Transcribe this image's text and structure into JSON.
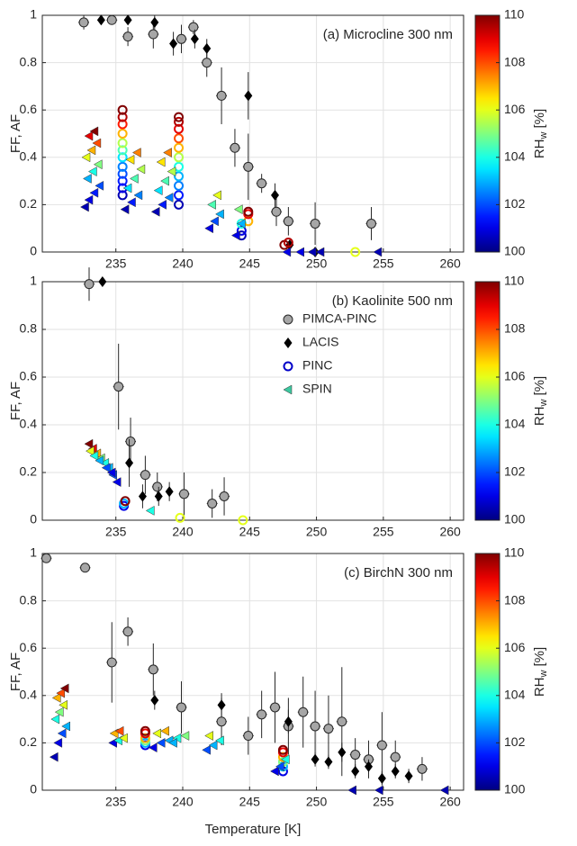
{
  "chart_data": [
    {
      "type": "scatter",
      "annotation": "(a) Microcline 300 nm",
      "ylabel": "FF, AF",
      "xlim": [
        229.5,
        261
      ],
      "xticks": [
        235,
        240,
        245,
        250,
        255,
        260
      ],
      "ylim": [
        0,
        1
      ],
      "yticks": [
        0,
        0.2,
        0.4,
        0.6,
        0.8,
        1
      ],
      "grid": true,
      "colorbar": {
        "colormap": "jet",
        "label": "RH",
        "label_sub": "w",
        "label_unit": "[%]",
        "lim": [
          100,
          110
        ],
        "ticks": [
          100,
          102,
          104,
          106,
          108,
          110
        ]
      },
      "series": [
        {
          "marker": "circle",
          "color": "#a6a6a6",
          "xerr": 0.4,
          "x": [
            232.6,
            234.7,
            235.9,
            237.8,
            239.9,
            240.8,
            241.8,
            242.9,
            243.9,
            244.9,
            245.9,
            247,
            247.9,
            249.9,
            254.1
          ],
          "y": [
            0.97,
            0.98,
            0.91,
            0.92,
            0.9,
            0.95,
            0.8,
            0.66,
            0.44,
            0.36,
            0.29,
            0.17,
            0.13,
            0.12,
            0.12
          ],
          "yerr": [
            0.03,
            0.02,
            0.04,
            0.06,
            0.06,
            0.03,
            0.06,
            0.12,
            0.08,
            0.14,
            0.04,
            0.06,
            0.06,
            0.09,
            0.07
          ]
        },
        {
          "marker": "diamond",
          "color": "#000000",
          "x": [
            233.9,
            235.9,
            237.9,
            239.3,
            240.9,
            241.8,
            244.9,
            246.9,
            248,
            249.9
          ],
          "y": [
            0.98,
            0.98,
            0.97,
            0.88,
            0.9,
            0.86,
            0.66,
            0.24,
            0.03,
            0
          ],
          "yerr": [
            0.02,
            0.02,
            0.03,
            0.05,
            0.04,
            0.04,
            0.1,
            0.05,
            0.02,
            0.01
          ]
        },
        {
          "marker": "ring",
          "x": [
            235.5,
            235.5,
            235.5,
            235.5,
            235.5,
            235.5,
            235.5,
            235.5,
            235.5,
            235.5,
            235.5,
            235.5,
            239.7,
            239.7,
            239.7,
            239.7,
            239.7,
            239.7,
            239.7,
            239.7,
            239.7,
            239.7,
            239.7,
            244.4,
            244.4,
            244.4,
            244.9,
            244.9,
            244.9,
            247.6,
            247.9,
            252.9
          ],
          "y": [
            0.24,
            0.27,
            0.3,
            0.33,
            0.36,
            0.4,
            0.43,
            0.46,
            0.5,
            0.54,
            0.57,
            0.6,
            0.2,
            0.24,
            0.28,
            0.32,
            0.36,
            0.4,
            0.44,
            0.48,
            0.52,
            0.55,
            0.57,
            0.07,
            0.09,
            0.12,
            0.13,
            0.16,
            0.17,
            0.03,
            0.04,
            0
          ],
          "rh": [
            100.5,
            101,
            101.5,
            102,
            102.5,
            103.5,
            104.5,
            105.5,
            107,
            108.5,
            109.5,
            110,
            100.5,
            101.5,
            102.5,
            103,
            104,
            105.5,
            107,
            108,
            109,
            109.5,
            110,
            100.5,
            101,
            104,
            107,
            109,
            110,
            110,
            109.5,
            106
          ]
        },
        {
          "marker": "triangle-left",
          "x": [
            232.7,
            233.0,
            233.4,
            233.8,
            232.9,
            233.3,
            233.7,
            232.8,
            233.2,
            233.6,
            233.0,
            233.4,
            235.7,
            236.2,
            236.7,
            235.9,
            236.4,
            236.9,
            236.1,
            236.6,
            238.0,
            238.5,
            239.0,
            238.2,
            238.7,
            239.2,
            238.4,
            238.9,
            242.0,
            242.4,
            242.8,
            242.2,
            242.6,
            244.0,
            244.4,
            244.2,
            247.8,
            248.8,
            249.7,
            250.3,
            254.6
          ],
          "y": [
            0.19,
            0.22,
            0.25,
            0.28,
            0.31,
            0.34,
            0.37,
            0.4,
            0.43,
            0.46,
            0.49,
            0.51,
            0.18,
            0.21,
            0.24,
            0.27,
            0.31,
            0.35,
            0.39,
            0.42,
            0.17,
            0.2,
            0.23,
            0.26,
            0.3,
            0.34,
            0.38,
            0.42,
            0.1,
            0.13,
            0.16,
            0.2,
            0.24,
            0.07,
            0.12,
            0.18,
            0,
            0,
            0,
            0,
            0
          ],
          "rh": [
            100.5,
            101,
            101.5,
            102,
            103,
            104,
            105,
            106,
            107,
            108,
            109,
            110,
            100.5,
            101.5,
            102.5,
            103.5,
            104.5,
            105.5,
            106.5,
            107.5,
            100.5,
            101.5,
            102.5,
            103.5,
            104.5,
            105.5,
            106.5,
            107.5,
            101,
            102,
            103,
            104.5,
            106,
            101,
            103,
            105,
            101,
            101,
            100.5,
            100.5,
            100.5
          ]
        }
      ]
    },
    {
      "type": "scatter",
      "annotation": "(b) Kaolinite 500 nm",
      "ylabel": "FF, AF",
      "xlim": [
        229.5,
        261
      ],
      "xticks": [
        235,
        240,
        245,
        250,
        255,
        260
      ],
      "ylim": [
        0,
        1
      ],
      "yticks": [
        0,
        0.2,
        0.4,
        0.6,
        0.8,
        1
      ],
      "grid": true,
      "legend": "center",
      "colorbar": {
        "colormap": "jet",
        "label": "RH",
        "label_sub": "w",
        "label_unit": "[%]",
        "lim": [
          100,
          110
        ],
        "ticks": [
          100,
          102,
          104,
          106,
          108,
          110
        ]
      },
      "series": [
        {
          "name": "PIMCA-PINC",
          "marker": "circle",
          "color": "#a6a6a6",
          "xerr": 0.4,
          "x": [
            233,
            235.2,
            236.1,
            237.2,
            238.1,
            240.1,
            242.2,
            243.1
          ],
          "y": [
            0.99,
            0.56,
            0.33,
            0.19,
            0.14,
            0.11,
            0.07,
            0.1
          ],
          "yerr": [
            0.07,
            0.18,
            0.1,
            0.08,
            0.06,
            0.09,
            0.06,
            0.08
          ]
        },
        {
          "name": "LACIS",
          "marker": "diamond",
          "color": "#000000",
          "x": [
            234,
            236,
            237,
            238.2,
            239
          ],
          "y": [
            1,
            0.24,
            0.1,
            0.1,
            0.12
          ],
          "yerr": [
            0.01,
            0.1,
            0.05,
            0.04,
            0.04
          ]
        },
        {
          "name": "PINC",
          "marker": "ring",
          "color": "#0000c8",
          "x": [
            235.6,
            235.6,
            235.7,
            239.8,
            244.5
          ],
          "y": [
            0.06,
            0.07,
            0.08,
            0.01,
            0
          ],
          "rh": [
            101,
            103,
            110,
            106,
            106
          ]
        },
        {
          "name": "SPIN",
          "marker": "triangle-left",
          "color": "#3cc8a0",
          "x": [
            233,
            233.3,
            233.6,
            233.9,
            234.2,
            234.5,
            234.8,
            235.1,
            233.1,
            233.4,
            233.8,
            234.3,
            234.7,
            237.6
          ],
          "y": [
            0.32,
            0.3,
            0.28,
            0.26,
            0.24,
            0.22,
            0.19,
            0.16,
            0.29,
            0.27,
            0.25,
            0.22,
            0.2,
            0.04
          ],
          "rh": [
            110,
            109,
            107,
            105,
            104,
            103,
            102,
            101,
            106,
            104,
            103,
            102,
            101,
            104
          ]
        }
      ]
    },
    {
      "type": "scatter",
      "annotation": "(c) BirchN 300 nm",
      "ylabel": "FF, AF",
      "xlabel": "Temperature [K]",
      "xlim": [
        229.5,
        261
      ],
      "xticks": [
        235,
        240,
        245,
        250,
        255,
        260
      ],
      "ylim": [
        0,
        1
      ],
      "yticks": [
        0,
        0.2,
        0.4,
        0.6,
        0.8,
        1
      ],
      "grid": true,
      "colorbar": {
        "colormap": "jet",
        "label": "RH",
        "label_sub": "w",
        "label_unit": "[%]",
        "lim": [
          100,
          110
        ],
        "ticks": [
          100,
          102,
          104,
          106,
          108,
          110
        ]
      },
      "series": [
        {
          "marker": "circle",
          "color": "#a6a6a6",
          "xerr": 0.4,
          "x": [
            229.8,
            232.7,
            234.7,
            235.9,
            237.8,
            239.9,
            242.9,
            244.9,
            245.9,
            246.9,
            247.9,
            249,
            249.9,
            250.9,
            251.9,
            252.9,
            253.9,
            254.9,
            255.9,
            257.9
          ],
          "y": [
            0.98,
            0.94,
            0.54,
            0.67,
            0.51,
            0.35,
            0.29,
            0.23,
            0.32,
            0.35,
            0.27,
            0.33,
            0.27,
            0.26,
            0.29,
            0.15,
            0.13,
            0.19,
            0.14,
            0.09
          ],
          "yerr": [
            0.01,
            0.02,
            0.17,
            0.06,
            0.11,
            0.11,
            0.1,
            0.08,
            0.1,
            0.15,
            0.12,
            0.15,
            0.15,
            0.14,
            0.23,
            0.07,
            0.08,
            0.14,
            0.07,
            0.05
          ]
        },
        {
          "marker": "diamond",
          "color": "#000000",
          "x": [
            237.9,
            242.9,
            247.9,
            249.9,
            250.9,
            251.9,
            252.9,
            253.9,
            254.9,
            255.9,
            256.9
          ],
          "y": [
            0.38,
            0.36,
            0.29,
            0.13,
            0.12,
            0.16,
            0.08,
            0.1,
            0.05,
            0.08,
            0.06
          ],
          "yerr": [
            0.04,
            0.05,
            0.05,
            0.03,
            0.03,
            0.04,
            0.03,
            0.03,
            0.03,
            0.03,
            0.03
          ]
        },
        {
          "marker": "ring",
          "x": [
            237.2,
            237.2,
            237.2,
            237.2,
            237.2,
            237.2,
            247.5,
            247.5,
            247.5,
            247.5,
            247.5,
            247.5
          ],
          "y": [
            0.19,
            0.2,
            0.21,
            0.22,
            0.24,
            0.25,
            0.08,
            0.1,
            0.12,
            0.14,
            0.16,
            0.17
          ],
          "rh": [
            101,
            103,
            105,
            107,
            109,
            110,
            101,
            103,
            105,
            107,
            109,
            110
          ]
        },
        {
          "marker": "triangle-left",
          "x": [
            230.4,
            230.7,
            231,
            231.3,
            230.5,
            230.8,
            231.1,
            230.6,
            230.9,
            231.2,
            234.8,
            235.2,
            235.6,
            234.9,
            235.3,
            237.8,
            238.4,
            239,
            239.6,
            240.2,
            238.1,
            238.7,
            239.3,
            241.8,
            242.3,
            242.8,
            242,
            246.9,
            247.3,
            247.7,
            252.7,
            254.7,
            259.6
          ],
          "y": [
            0.14,
            0.2,
            0.24,
            0.27,
            0.3,
            0.33,
            0.36,
            0.39,
            0.41,
            0.43,
            0.2,
            0.21,
            0.22,
            0.24,
            0.25,
            0.18,
            0.2,
            0.21,
            0.22,
            0.23,
            0.24,
            0.25,
            0.2,
            0.17,
            0.19,
            0.21,
            0.23,
            0.08,
            0.1,
            0.13,
            0,
            0,
            0
          ],
          "rh": [
            100.5,
            101,
            102,
            103,
            104,
            105,
            106,
            107,
            108,
            110,
            101,
            104,
            106,
            107,
            108,
            101,
            102,
            103,
            104,
            105,
            106,
            107,
            103,
            102,
            103,
            104,
            106,
            101,
            102,
            104,
            100.5,
            100.5,
            100.5
          ]
        }
      ]
    }
  ]
}
